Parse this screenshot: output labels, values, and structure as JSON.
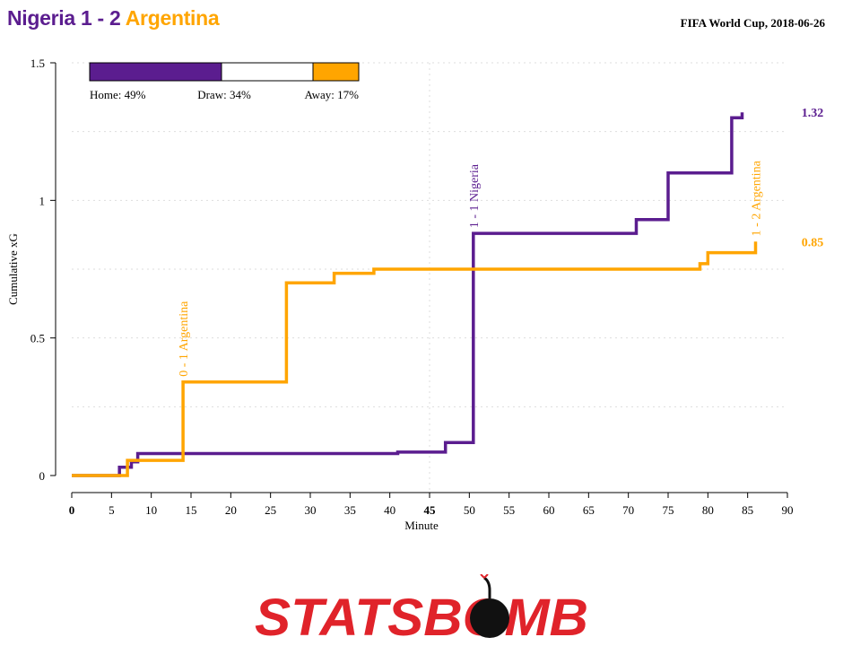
{
  "header": {
    "home_team": "Nigeria",
    "score": "1 - 2",
    "away_team": "Argentina",
    "competition": "FIFA World Cup, 2018-06-26"
  },
  "colors": {
    "home": "#5b1d8f",
    "away": "#ffa500",
    "text": "#000000",
    "grid": "#dddddd",
    "logo_red": "#e0232a"
  },
  "probability_bar": {
    "home_label": "Home: 49%",
    "draw_label": "Draw: 34%",
    "away_label": "Away: 17%",
    "home": 0.49,
    "draw": 0.34,
    "away": 0.17
  },
  "logo": {
    "text": "STATSBOMB"
  },
  "chart_data": {
    "type": "line",
    "title": "",
    "xlabel": "Minute",
    "ylabel": "Cumulative xG",
    "xlim": [
      0,
      90
    ],
    "ylim": [
      0,
      1.5
    ],
    "x_ticks": [
      0,
      5,
      10,
      15,
      20,
      25,
      30,
      35,
      40,
      45,
      50,
      55,
      60,
      65,
      70,
      75,
      80,
      85,
      90
    ],
    "y_ticks": [
      0,
      0.5,
      1,
      1.5
    ],
    "y_tick_labels": [
      "0",
      "0.5",
      "1",
      "1.5"
    ],
    "grid": true,
    "halftime_line": 45,
    "series": [
      {
        "name": "Nigeria",
        "color": "#5b1d8f",
        "final_label": "1.32",
        "final_value": 1.32,
        "points": [
          [
            0,
            0
          ],
          [
            6,
            0
          ],
          [
            6,
            0.03
          ],
          [
            7.5,
            0.03
          ],
          [
            7.5,
            0.05
          ],
          [
            8.3,
            0.05
          ],
          [
            8.3,
            0.08
          ],
          [
            41,
            0.08
          ],
          [
            41,
            0.085
          ],
          [
            47,
            0.085
          ],
          [
            47,
            0.12
          ],
          [
            50.5,
            0.12
          ],
          [
            50.5,
            0.88
          ],
          [
            71,
            0.88
          ],
          [
            71,
            0.93
          ],
          [
            75,
            0.93
          ],
          [
            75,
            1.1
          ],
          [
            83,
            1.1
          ],
          [
            83,
            1.3
          ],
          [
            84.3,
            1.3
          ],
          [
            84.3,
            1.32
          ]
        ]
      },
      {
        "name": "Argentina",
        "color": "#ffa500",
        "final_label": "0.85",
        "final_value": 0.85,
        "points": [
          [
            0,
            0
          ],
          [
            7,
            0
          ],
          [
            7,
            0.055
          ],
          [
            14,
            0.055
          ],
          [
            14,
            0.34
          ],
          [
            27,
            0.34
          ],
          [
            27,
            0.7
          ],
          [
            33,
            0.7
          ],
          [
            33,
            0.735
          ],
          [
            38,
            0.735
          ],
          [
            38,
            0.75
          ],
          [
            79,
            0.75
          ],
          [
            79,
            0.77
          ],
          [
            80,
            0.77
          ],
          [
            80,
            0.81
          ],
          [
            86,
            0.81
          ],
          [
            86,
            0.85
          ]
        ]
      }
    ],
    "annotations": [
      {
        "text": "0 - 1 Argentina",
        "x": 14,
        "y": 0.34,
        "team": "away"
      },
      {
        "text": "1 - 1 Nigeria",
        "x": 50.5,
        "y": 0.88,
        "team": "home"
      },
      {
        "text": "1 - 2 Argentina",
        "x": 86,
        "y": 0.85,
        "team": "away"
      }
    ]
  }
}
